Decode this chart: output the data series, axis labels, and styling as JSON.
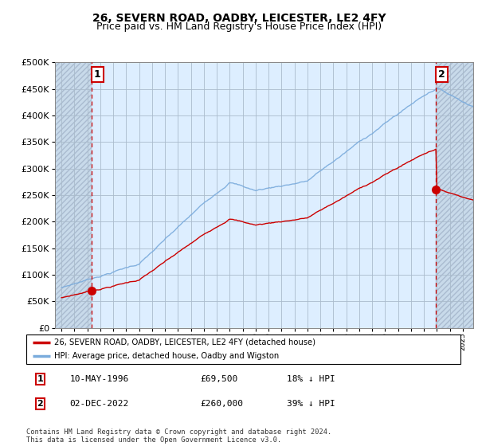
{
  "title": "26, SEVERN ROAD, OADBY, LEICESTER, LE2 4FY",
  "subtitle": "Price paid vs. HM Land Registry's House Price Index (HPI)",
  "ylim": [
    0,
    500000
  ],
  "yticks": [
    0,
    50000,
    100000,
    150000,
    200000,
    250000,
    300000,
    350000,
    400000,
    450000,
    500000
  ],
  "ytick_labels": [
    "£0",
    "£50K",
    "£100K",
    "£150K",
    "£200K",
    "£250K",
    "£300K",
    "£350K",
    "£400K",
    "£450K",
    "£500K"
  ],
  "sale1_date": 1996.36,
  "sale1_price": 69500,
  "sale1_label": "1",
  "sale2_date": 2022.92,
  "sale2_price": 260000,
  "sale2_label": "2",
  "sale1_info": "10-MAY-1996",
  "sale1_amount": "£69,500",
  "sale1_hpi": "18% ↓ HPI",
  "sale2_info": "02-DEC-2022",
  "sale2_amount": "£260,000",
  "sale2_hpi": "39% ↓ HPI",
  "legend_line1": "26, SEVERN ROAD, OADBY, LEICESTER, LE2 4FY (detached house)",
  "legend_line2": "HPI: Average price, detached house, Oadby and Wigston",
  "footnote": "Contains HM Land Registry data © Crown copyright and database right 2024.\nThis data is licensed under the Open Government Licence v3.0.",
  "hpi_color": "#7aabdc",
  "price_color": "#cc0000",
  "chart_bg": "#ddeeff",
  "hatch_color": "#b8cce0",
  "grid_color": "#aabbcc",
  "title_fontsize": 10,
  "subtitle_fontsize": 9,
  "axis_fontsize": 8,
  "xstart": 1993.5,
  "xend": 2025.8
}
